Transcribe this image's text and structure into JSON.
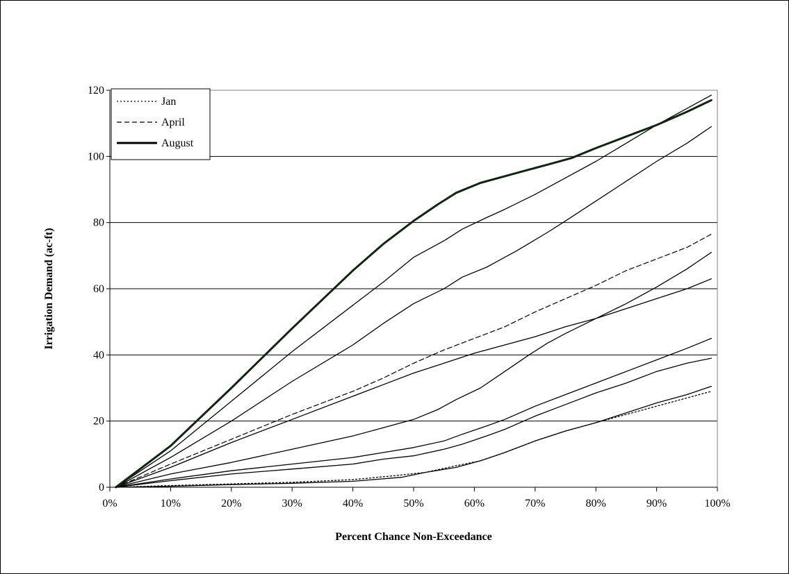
{
  "chart_data": {
    "type": "line",
    "title": "",
    "xlabel": "Percent Chance Non-Exceedance",
    "ylabel": "Irrigation Demand (ac-ft)",
    "xlim": [
      0,
      100
    ],
    "ylim": [
      0,
      120
    ],
    "x_ticks": [
      "0%",
      "10%",
      "20%",
      "30%",
      "40%",
      "50%",
      "60%",
      "70%",
      "80%",
      "90%",
      "100%"
    ],
    "y_ticks": [
      "0",
      "20",
      "40",
      "60",
      "80",
      "100",
      "120"
    ],
    "grid": "horizontal",
    "legend_position": "top-left",
    "legend": [
      {
        "label": "Jan",
        "style": "dotted"
      },
      {
        "label": "April",
        "style": "dashed"
      },
      {
        "label": "August",
        "style": "bold-solid"
      }
    ],
    "series": [
      {
        "name": "Jan",
        "style": "dotted",
        "x": [
          1,
          10,
          20,
          30,
          40,
          47,
          52,
          57,
          61,
          65,
          70,
          75,
          80,
          85,
          90,
          95,
          99
        ],
        "y": [
          0,
          0.5,
          1,
          1.5,
          2.3,
          3.5,
          4.5,
          6.5,
          8,
          10.5,
          14,
          17,
          19.5,
          22,
          24.5,
          27,
          29
        ]
      },
      {
        "name": "April",
        "style": "dashed",
        "x": [
          1,
          10,
          20,
          30,
          40,
          45,
          50,
          55,
          60,
          65,
          70,
          75,
          80,
          85,
          90,
          95,
          99
        ],
        "y": [
          0,
          7,
          14.5,
          22,
          29,
          33,
          37.5,
          41.5,
          45,
          48.5,
          53,
          57,
          61,
          65.5,
          69,
          72.5,
          76.5
        ]
      },
      {
        "name": "August",
        "style": "bold-solid",
        "x": [
          1,
          10,
          20,
          30,
          40,
          45,
          50,
          54,
          57,
          61,
          65,
          70,
          72,
          76,
          80,
          85,
          90,
          95,
          99
        ],
        "y": [
          0,
          12.5,
          30,
          48,
          65.5,
          73.5,
          80.5,
          85.5,
          89,
          92,
          94,
          96.5,
          97.5,
          99.5,
          102.5,
          106,
          109.5,
          113.5,
          117
        ]
      },
      {
        "style": "solid",
        "x": [
          1,
          10,
          20,
          30,
          40,
          45,
          50,
          55,
          58,
          62,
          65,
          70,
          75,
          80,
          85,
          90,
          95,
          99
        ],
        "y": [
          0,
          11,
          26,
          41,
          55,
          62,
          69.5,
          74.5,
          78,
          81.5,
          84,
          88.5,
          93.5,
          98.5,
          104,
          109.5,
          114.5,
          118.5
        ]
      },
      {
        "style": "solid",
        "x": [
          1,
          10,
          20,
          30,
          40,
          45,
          50,
          55,
          58,
          62,
          67,
          72,
          75,
          80,
          85,
          90,
          95,
          99
        ],
        "y": [
          0,
          9,
          20,
          32,
          43,
          49.5,
          55.5,
          60,
          63.5,
          66.5,
          71.5,
          77,
          80.5,
          86.5,
          92.5,
          98.5,
          104,
          109
        ]
      },
      {
        "style": "solid",
        "x": [
          1,
          10,
          20,
          30,
          40,
          45,
          50,
          55,
          60,
          65,
          70,
          75,
          80,
          85,
          90,
          95,
          99
        ],
        "y": [
          0,
          6,
          13.5,
          20.5,
          27.5,
          31,
          34.5,
          37.5,
          40.5,
          43,
          45.5,
          48.5,
          51,
          54,
          57,
          60,
          63
        ]
      },
      {
        "style": "solid",
        "x": [
          1,
          10,
          20,
          30,
          40,
          45,
          50,
          54,
          57,
          61,
          65,
          69,
          72,
          75,
          80,
          85,
          90,
          95,
          99
        ],
        "y": [
          0,
          4,
          7.5,
          11.5,
          15.5,
          18,
          20.5,
          23.5,
          26.5,
          30,
          35,
          40,
          43.5,
          46.5,
          51,
          55.5,
          60.5,
          66,
          71
        ]
      },
      {
        "style": "solid",
        "x": [
          1,
          10,
          20,
          30,
          40,
          45,
          50,
          55,
          58,
          62,
          65,
          70,
          75,
          80,
          85,
          90,
          95,
          99
        ],
        "y": [
          0,
          2.5,
          5,
          7,
          9,
          10.5,
          12,
          14,
          16,
          18.5,
          20.5,
          24.5,
          28,
          31.5,
          35,
          38.5,
          42,
          45
        ]
      },
      {
        "style": "solid",
        "x": [
          1,
          10,
          20,
          30,
          40,
          45,
          50,
          55,
          58,
          62,
          65,
          70,
          75,
          80,
          85,
          90,
          95,
          99
        ],
        "y": [
          0,
          2,
          4,
          5.5,
          7,
          8.5,
          9.5,
          11.5,
          13,
          15.5,
          17.5,
          21.5,
          25,
          28.5,
          31.5,
          35,
          37.5,
          39
        ]
      },
      {
        "style": "solid",
        "x": [
          1,
          10,
          20,
          30,
          40,
          48,
          52,
          57,
          61,
          65,
          70,
          75,
          80,
          85,
          90,
          95,
          99
        ],
        "y": [
          0,
          0.3,
          0.8,
          1.2,
          1.8,
          3,
          4.5,
          6,
          8,
          10.5,
          14,
          17,
          19.5,
          22.5,
          25.5,
          28,
          30.5
        ]
      }
    ]
  }
}
